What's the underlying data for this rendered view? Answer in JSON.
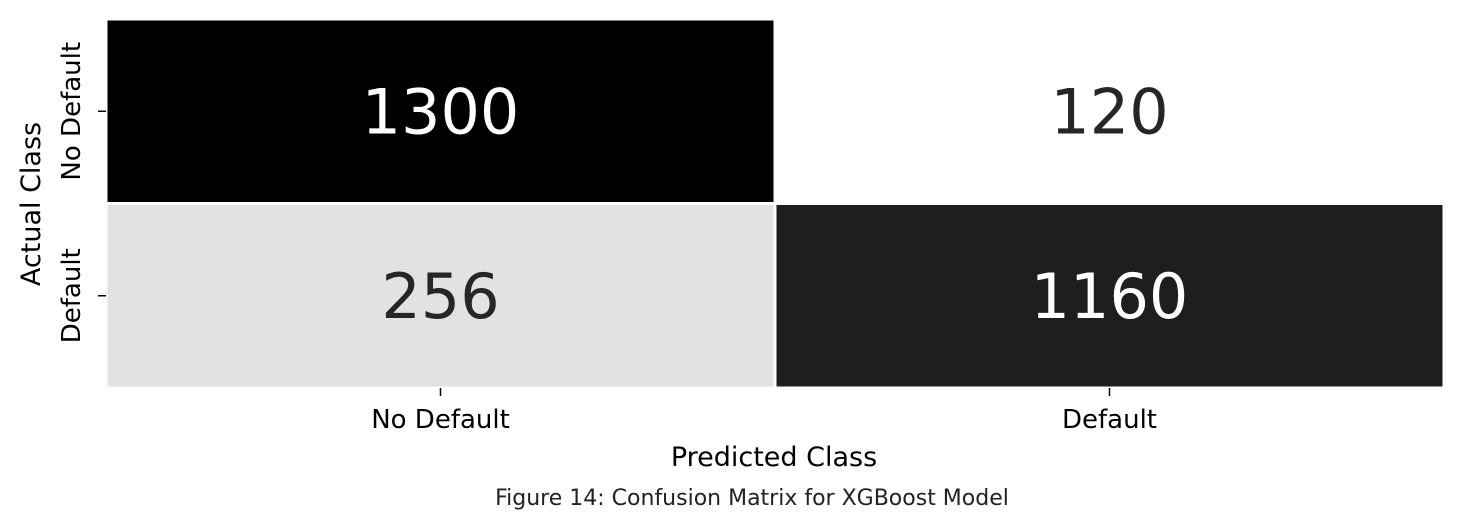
{
  "chart_data": {
    "type": "heatmap",
    "xlabel": "Predicted Class",
    "ylabel": "Actual Class",
    "x_categories": [
      "No Default",
      "Default"
    ],
    "y_categories": [
      "No Default",
      "Default"
    ],
    "values": [
      [
        1300,
        120
      ],
      [
        256,
        1160
      ]
    ],
    "colormap": "white-to-black (higher count = darker)",
    "colorbar": false
  },
  "caption": "Figure 14: Confusion Matrix for XGBoost Model"
}
